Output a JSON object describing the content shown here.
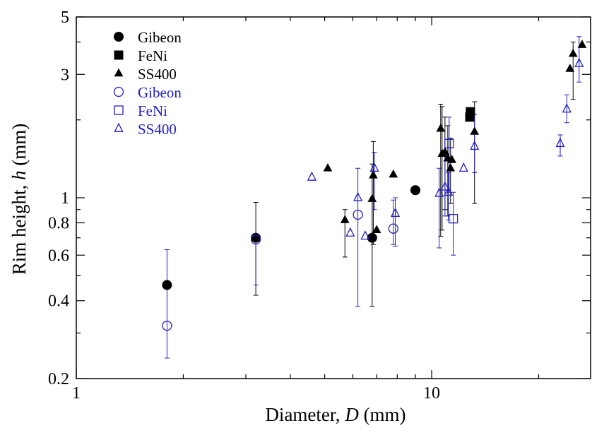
{
  "chart_data": {
    "type": "scatter",
    "xscale": "log",
    "yscale": "log",
    "xlim": [
      1,
      28
    ],
    "ylim": [
      0.2,
      5
    ],
    "xlabel": {
      "prefix": "Diameter, ",
      "var": "D",
      "suffix": " (mm)"
    },
    "ylabel": {
      "prefix": "Rim height, ",
      "var": "h",
      "suffix": " (mm)"
    },
    "xticks": [
      {
        "value": 1,
        "label": "1"
      },
      {
        "value": 10,
        "label": "10"
      }
    ],
    "yticks": [
      {
        "value": 0.2,
        "label": "0.2"
      },
      {
        "value": 0.4,
        "label": "0.4"
      },
      {
        "value": 0.6,
        "label": "0.6"
      },
      {
        "value": 0.8,
        "label": "0.8"
      },
      {
        "value": 1,
        "label": "1"
      },
      {
        "value": 3,
        "label": "3"
      },
      {
        "value": 5,
        "label": "5"
      }
    ],
    "legend_position": "top-left",
    "series": [
      {
        "name": "Gibeon",
        "marker": "circle",
        "filled": true,
        "color": "#000000",
        "points": [
          {
            "x": 1.8,
            "y": 0.46
          },
          {
            "x": 3.2,
            "y": 0.7,
            "ylo": 0.42,
            "yhi": 0.96
          },
          {
            "x": 6.8,
            "y": 0.7
          },
          {
            "x": 9.0,
            "y": 1.07
          }
        ]
      },
      {
        "name": "FeNi",
        "marker": "square",
        "filled": true,
        "color": "#000000",
        "points": [
          {
            "x": 12.8,
            "y": 2.05
          },
          {
            "x": 12.85,
            "y": 2.15
          }
        ]
      },
      {
        "name": "SS400",
        "marker": "triangle",
        "filled": true,
        "color": "#000000",
        "points": [
          {
            "x": 5.1,
            "y": 1.3
          },
          {
            "x": 5.7,
            "y": 0.82,
            "ylo": 0.59,
            "yhi": 0.9
          },
          {
            "x": 6.8,
            "y": 0.99,
            "ylo": 0.38,
            "yhi": 1.35
          },
          {
            "x": 6.85,
            "y": 1.22,
            "ylo": 0.66,
            "yhi": 1.65
          },
          {
            "x": 7.0,
            "y": 0.75
          },
          {
            "x": 7.8,
            "y": 1.23
          },
          {
            "x": 10.6,
            "y": 1.85,
            "ylo": 0.71,
            "yhi": 2.3
          },
          {
            "x": 10.7,
            "y": 1.48,
            "ylo": 0.75,
            "yhi": 2.25
          },
          {
            "x": 10.9,
            "y": 1.5,
            "ylo": 0.9,
            "yhi": 2.05
          },
          {
            "x": 11.1,
            "y": 1.42,
            "ylo": 0.85,
            "yhi": 1.9
          },
          {
            "x": 11.3,
            "y": 1.3,
            "ylo": 0.95,
            "yhi": 1.7
          },
          {
            "x": 11.4,
            "y": 1.4
          },
          {
            "x": 13.2,
            "y": 1.8,
            "ylo": 0.95,
            "yhi": 2.35
          },
          {
            "x": 24.5,
            "y": 3.15
          },
          {
            "x": 25.0,
            "y": 3.6,
            "ylo": 2.4,
            "yhi": 4.0
          },
          {
            "x": 26.5,
            "y": 3.9
          }
        ]
      },
      {
        "name": "Gibeon",
        "marker": "circle",
        "filled": false,
        "color": "#2020c0",
        "points": [
          {
            "x": 1.8,
            "y": 0.32,
            "ylo": 0.24,
            "yhi": 0.63
          },
          {
            "x": 3.2,
            "y": 0.69,
            "ylo": 0.46,
            "yhi": 0.72
          },
          {
            "x": 6.2,
            "y": 0.86,
            "ylo": 0.38,
            "yhi": 1.3
          },
          {
            "x": 7.8,
            "y": 0.76,
            "ylo": 0.66,
            "yhi": 0.98
          }
        ]
      },
      {
        "name": "FeNi",
        "marker": "square",
        "filled": false,
        "color": "#2020c0",
        "points": [
          {
            "x": 11.5,
            "y": 0.83,
            "ylo": 0.6,
            "yhi": 1.05
          },
          {
            "x": 11.2,
            "y": 1.62,
            "ylo": 1.05,
            "yhi": 2.05
          }
        ]
      },
      {
        "name": "SS400",
        "marker": "triangle",
        "filled": false,
        "color": "#2020c0",
        "points": [
          {
            "x": 4.6,
            "y": 1.2
          },
          {
            "x": 5.9,
            "y": 0.73
          },
          {
            "x": 6.2,
            "y": 1.0
          },
          {
            "x": 6.5,
            "y": 0.71
          },
          {
            "x": 6.9,
            "y": 1.3,
            "ylo": 0.9,
            "yhi": 1.5
          },
          {
            "x": 7.9,
            "y": 0.87,
            "ylo": 0.65,
            "yhi": 1.0
          },
          {
            "x": 10.5,
            "y": 1.04,
            "ylo": 0.64,
            "yhi": 1.3
          },
          {
            "x": 10.9,
            "y": 1.1,
            "ylo": 0.85,
            "yhi": 1.45
          },
          {
            "x": 11.15,
            "y": 1.05,
            "ylo": 0.82,
            "yhi": 1.25
          },
          {
            "x": 12.3,
            "y": 1.3
          },
          {
            "x": 13.2,
            "y": 1.58,
            "ylo": 1.25,
            "yhi": 2.1
          },
          {
            "x": 23.0,
            "y": 1.62,
            "ylo": 1.45,
            "yhi": 1.75
          },
          {
            "x": 24.0,
            "y": 2.2,
            "ylo": 1.95,
            "yhi": 2.5
          },
          {
            "x": 26.0,
            "y": 3.3,
            "ylo": 2.8,
            "yhi": 4.2
          }
        ]
      }
    ]
  }
}
